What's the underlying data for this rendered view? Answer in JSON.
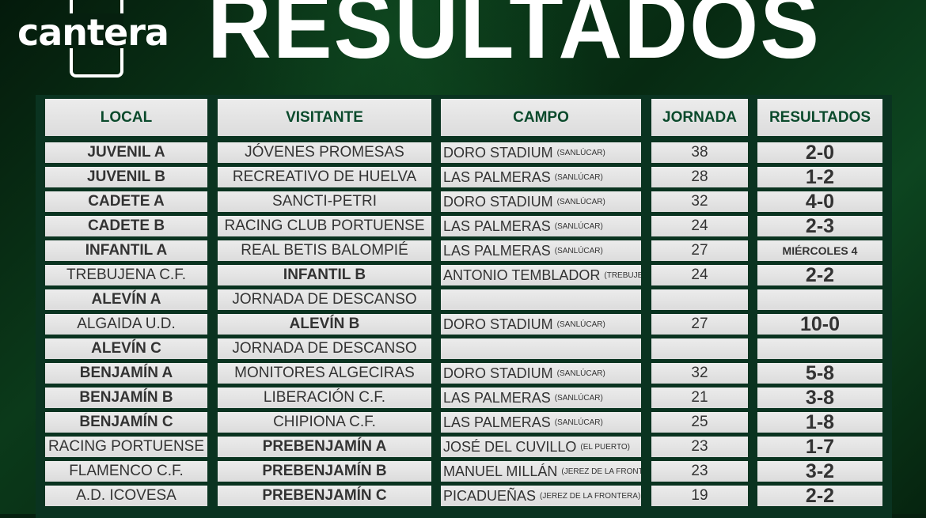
{
  "header": {
    "logo": "cantera",
    "title": "RESULTADOS"
  },
  "colors": {
    "header_text": "#0b4a2c",
    "table_bg": "#0a3320",
    "cell_bg": "#e6e6e6"
  },
  "columns": [
    "LOCAL",
    "VISITANTE",
    "CAMPO",
    "JORNADA",
    "RESULTADOS"
  ],
  "rows": [
    {
      "local": "JUVENIL A",
      "local_bold": true,
      "visitante": "JÓVENES PROMESAS",
      "visitante_bold": false,
      "campo": "DORO STADIUM",
      "ciudad": "(SANLÚCAR)",
      "jornada": "38",
      "resultado": "2-0"
    },
    {
      "local": "JUVENIL B",
      "local_bold": true,
      "visitante": "RECREATIVO DE HUELVA",
      "visitante_bold": false,
      "campo": "LAS PALMERAS",
      "ciudad": "(SANLÚCAR)",
      "jornada": "28",
      "resultado": "1-2"
    },
    {
      "local": "CADETE A",
      "local_bold": true,
      "visitante": "SANCTI-PETRI",
      "visitante_bold": false,
      "campo": "DORO STADIUM",
      "ciudad": "(SANLÚCAR)",
      "jornada": "32",
      "resultado": "4-0"
    },
    {
      "local": "CADETE B",
      "local_bold": true,
      "visitante": "RACING CLUB PORTUENSE",
      "visitante_bold": false,
      "campo": "LAS PALMERAS",
      "ciudad": "(SANLÚCAR)",
      "jornada": "24",
      "resultado": "2-3"
    },
    {
      "local": "INFANTIL A",
      "local_bold": true,
      "visitante": "REAL BETIS BALOMPIÉ",
      "visitante_bold": false,
      "campo": "LAS PALMERAS",
      "ciudad": "(SANLÚCAR)",
      "jornada": "27",
      "resultado": "MIÉRCOLES 4"
    },
    {
      "local": "TREBUJENA C.F.",
      "local_bold": false,
      "visitante": "INFANTIL B",
      "visitante_bold": true,
      "campo": "ANTONIO TEMBLADOR",
      "ciudad": "(TREBUJENA)",
      "jornada": "24",
      "resultado": "2-2"
    },
    {
      "local": "ALEVÍN A",
      "local_bold": true,
      "visitante": "JORNADA DE DESCANSO",
      "visitante_bold": false,
      "campo": "",
      "ciudad": "",
      "jornada": "",
      "resultado": ""
    },
    {
      "local": "ALGAIDA U.D.",
      "local_bold": false,
      "visitante": "ALEVÍN B",
      "visitante_bold": true,
      "campo": "DORO STADIUM",
      "ciudad": "(SANLÚCAR)",
      "jornada": "27",
      "resultado": "10-0"
    },
    {
      "local": "ALEVÍN C",
      "local_bold": true,
      "visitante": "JORNADA DE DESCANSO",
      "visitante_bold": false,
      "campo": "",
      "ciudad": "",
      "jornada": "",
      "resultado": ""
    },
    {
      "local": "BENJAMÍN A",
      "local_bold": true,
      "visitante": "MONITORES ALGECIRAS",
      "visitante_bold": false,
      "campo": "DORO STADIUM",
      "ciudad": "(SANLÚCAR)",
      "jornada": "32",
      "resultado": "5-8"
    },
    {
      "local": "BENJAMÍN B",
      "local_bold": true,
      "visitante": "LIBERACIÓN C.F.",
      "visitante_bold": false,
      "campo": "LAS PALMERAS",
      "ciudad": "(SANLÚCAR)",
      "jornada": "21",
      "resultado": "3-8"
    },
    {
      "local": "BENJAMÍN C",
      "local_bold": true,
      "visitante": "CHIPIONA C.F.",
      "visitante_bold": false,
      "campo": "LAS PALMERAS",
      "ciudad": "(SANLÚCAR)",
      "jornada": "25",
      "resultado": "1-8"
    },
    {
      "local": "RACING PORTUENSE",
      "local_bold": false,
      "visitante": "PREBENJAMÍN A",
      "visitante_bold": true,
      "campo": "JOSÉ DEL CUVILLO",
      "ciudad": "(EL PUERTO)",
      "jornada": "23",
      "resultado": "1-7"
    },
    {
      "local": "FLAMENCO C.F.",
      "local_bold": false,
      "visitante": "PREBENJAMÍN B",
      "visitante_bold": true,
      "campo": "MANUEL MILLÁN",
      "ciudad": "(JEREZ DE LA FRONTERA)",
      "jornada": "23",
      "resultado": "3-2"
    },
    {
      "local": "A.D. ICOVESA",
      "local_bold": false,
      "visitante": "PREBENJAMÍN C",
      "visitante_bold": true,
      "campo": "PICADUEÑAS",
      "ciudad": "(JEREZ DE LA FRONTERA)",
      "jornada": "19",
      "resultado": "2-2"
    }
  ]
}
